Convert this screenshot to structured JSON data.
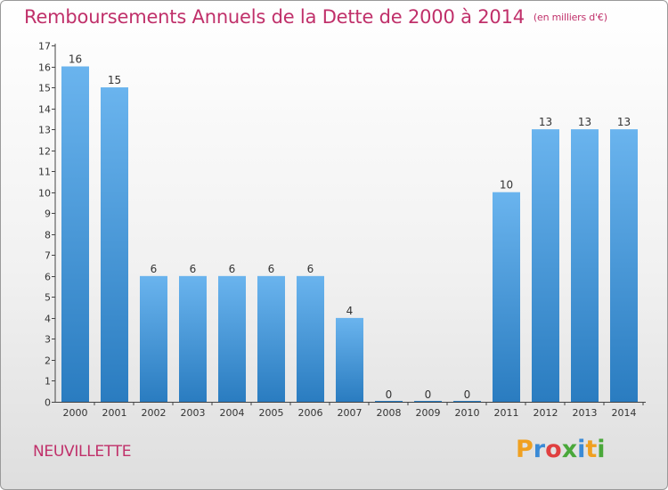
{
  "header": {
    "title": "Remboursements Annuels de la Dette de 2000 à 2014",
    "unit": "(en milliers d'€)"
  },
  "footer": {
    "commune": "NEUVILLETTE",
    "logo": [
      "P",
      "r",
      "o",
      "x",
      "i",
      "t",
      "i"
    ]
  },
  "colors": {
    "bar_light": "#6ab4ee",
    "bar_dark": "#2a7cc0",
    "title": "#c0306a",
    "logo": [
      "#f0a020",
      "#3a8ad6",
      "#e04040",
      "#4aa83a",
      "#3a8ad6",
      "#f0a020",
      "#4aa83a"
    ]
  },
  "chart_data": {
    "type": "bar",
    "title": "Remboursements Annuels de la Dette de 2000 à 2014",
    "xlabel": "",
    "ylabel": "",
    "categories": [
      "2000",
      "2001",
      "2002",
      "2003",
      "2004",
      "2005",
      "2006",
      "2007",
      "2008",
      "2009",
      "2010",
      "2011",
      "2012",
      "2013",
      "2014"
    ],
    "values": [
      16,
      15,
      6,
      6,
      6,
      6,
      6,
      4,
      0,
      0,
      0,
      10,
      13,
      13,
      13
    ],
    "data_labels": [
      "16",
      "15",
      "6",
      "6",
      "6",
      "6",
      "6",
      "4",
      "0",
      "0",
      "0",
      "10",
      "13",
      "13",
      "13"
    ],
    "ylim": [
      0,
      17
    ],
    "yticks": [
      0,
      1,
      2,
      3,
      4,
      5,
      6,
      7,
      8,
      9,
      10,
      11,
      12,
      13,
      14,
      15,
      16,
      17
    ],
    "grid": false,
    "legend": "none"
  }
}
